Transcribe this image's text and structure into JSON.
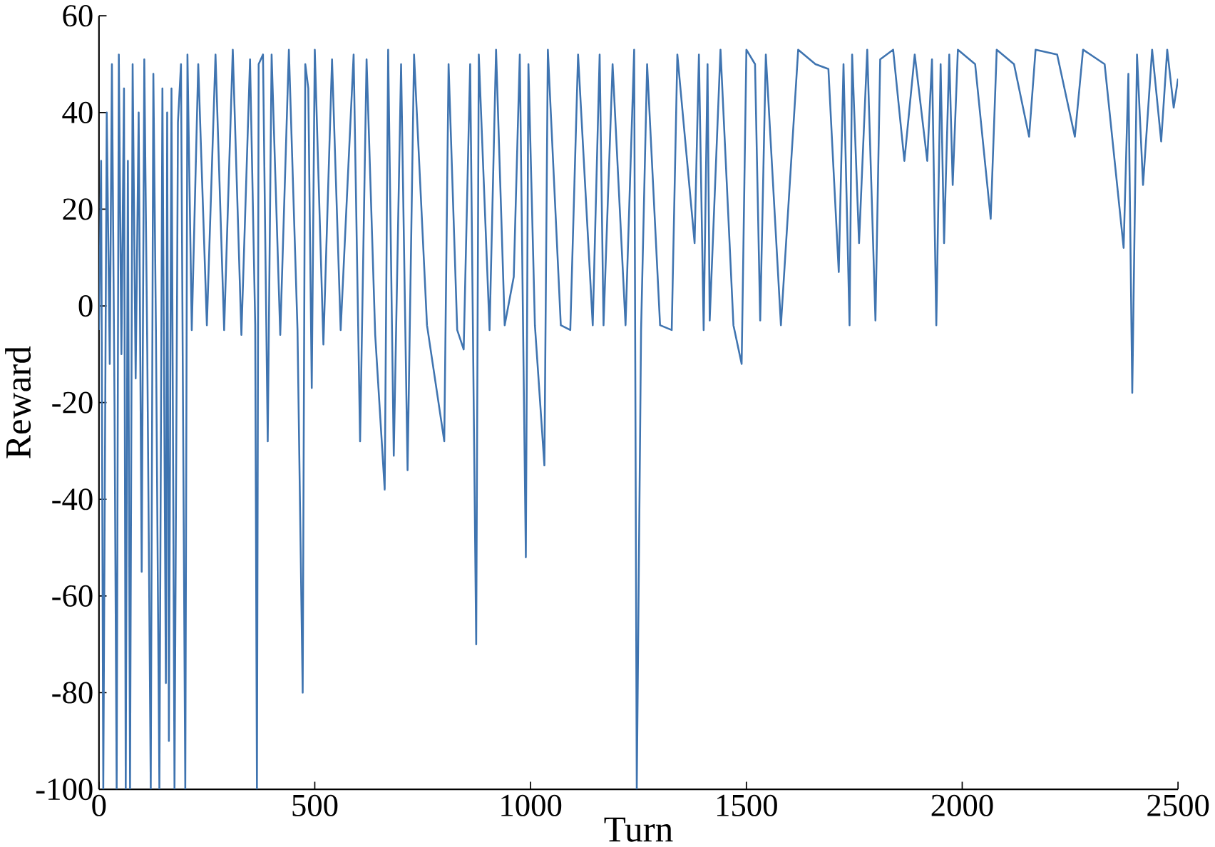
{
  "chart_data": {
    "type": "line",
    "xlabel": "Turn",
    "ylabel": "Reward",
    "color": "#3f74b0",
    "xlim": [
      0,
      2500
    ],
    "ylim": [
      -100,
      60
    ],
    "xticks": [
      0,
      500,
      1000,
      1500,
      2000,
      2500
    ],
    "yticks": [
      -100,
      -80,
      -60,
      -40,
      -20,
      0,
      20,
      40,
      60
    ],
    "x": [
      0,
      5,
      10,
      18,
      25,
      30,
      36,
      41,
      46,
      52,
      58,
      62,
      67,
      72,
      78,
      85,
      92,
      99,
      105,
      112,
      120,
      126,
      132,
      140,
      147,
      155,
      158,
      162,
      168,
      175,
      183,
      190,
      200,
      205,
      215,
      230,
      250,
      270,
      290,
      310,
      330,
      350,
      362,
      366,
      370,
      380,
      391,
      400,
      420,
      440,
      460,
      472,
      478,
      485,
      493,
      500,
      520,
      540,
      560,
      590,
      605,
      620,
      640,
      662,
      670,
      683,
      700,
      715,
      730,
      760,
      800,
      810,
      830,
      845,
      860,
      874,
      880,
      905,
      920,
      940,
      961,
      975,
      989,
      995,
      1010,
      1032,
      1040,
      1070,
      1092,
      1110,
      1144,
      1160,
      1169,
      1190,
      1220,
      1240,
      1246,
      1256,
      1270,
      1300,
      1327,
      1340,
      1380,
      1390,
      1401,
      1410,
      1415,
      1440,
      1470,
      1489,
      1500,
      1520,
      1532,
      1545,
      1580,
      1620,
      1660,
      1690,
      1714,
      1725,
      1739,
      1745,
      1761,
      1780,
      1799,
      1810,
      1840,
      1866,
      1890,
      1919,
      1930,
      1940,
      1950,
      1958,
      1970,
      1978,
      1990,
      2030,
      2066,
      2080,
      2120,
      2155,
      2170,
      2220,
      2261,
      2280,
      2330,
      2374,
      2385,
      2394,
      2405,
      2419,
      2440,
      2461,
      2475,
      2490,
      2500
    ],
    "values": [
      -5,
      30,
      -100,
      40,
      -12,
      50,
      -20,
      -100,
      52,
      -10,
      45,
      -100,
      30,
      -100,
      50,
      -15,
      40,
      -55,
      51,
      -10,
      -100,
      48,
      -5,
      -100,
      45,
      -78,
      40,
      -90,
      45,
      -100,
      38,
      50,
      -100,
      52,
      -5,
      50,
      -4,
      52,
      -5,
      53,
      -6,
      51,
      -4,
      -100,
      50,
      52,
      -28,
      52,
      -6,
      53,
      -5,
      -80,
      50,
      45,
      -17,
      53,
      -8,
      51,
      -5,
      52,
      -28,
      51,
      -6,
      -38,
      53,
      -31,
      50,
      -34,
      52,
      -4,
      -28,
      50,
      -5,
      -9,
      50,
      -70,
      52,
      -5,
      53,
      -4,
      6,
      52,
      -52,
      50,
      -4,
      -33,
      53,
      -4,
      -5,
      52,
      -4,
      52,
      -4,
      50,
      -4,
      53,
      -100,
      -5,
      50,
      -4,
      -5,
      52,
      13,
      52,
      -5,
      50,
      -3,
      53,
      -4,
      -12,
      53,
      50,
      -3,
      52,
      -4,
      53,
      50,
      49,
      7,
      50,
      -4,
      52,
      13,
      53,
      -3,
      51,
      53,
      30,
      52,
      30,
      51,
      -4,
      50,
      13,
      52,
      25,
      53,
      50,
      18,
      53,
      50,
      35,
      53,
      52,
      35,
      53,
      50,
      12,
      48,
      -18,
      52,
      25,
      53,
      34,
      53,
      41,
      47
    ]
  }
}
